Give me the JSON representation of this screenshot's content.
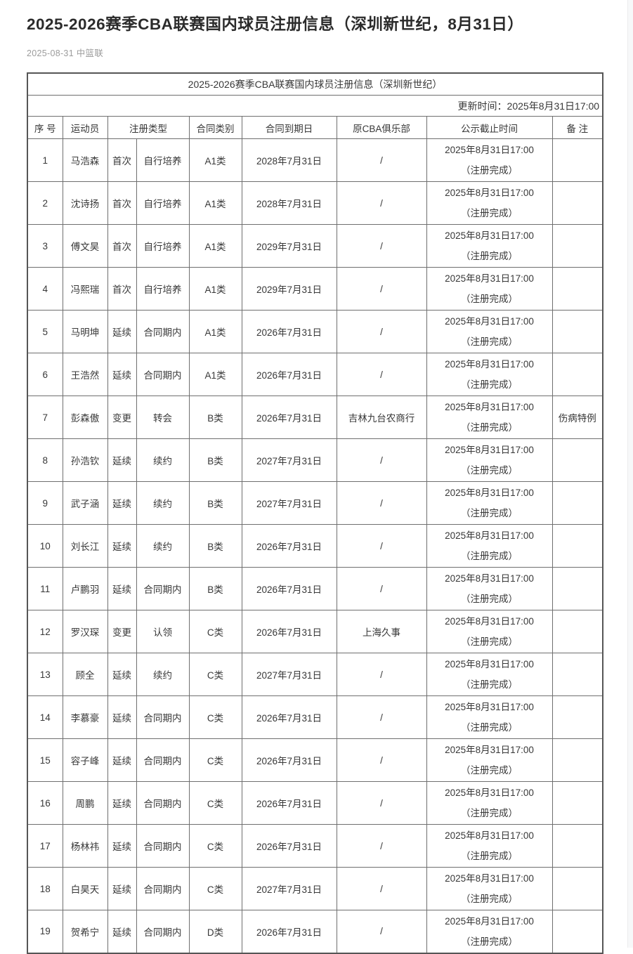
{
  "page": {
    "title": "2025-2026赛季CBA联赛国内球员注册信息（深圳新世纪，8月31日）",
    "meta": "2025-08-31 中篮联"
  },
  "table": {
    "caption": "2025-2026赛季CBA联赛国内球员注册信息（深圳新世纪）",
    "update_time": "更新时间：2025年8月31日17:00",
    "columns": {
      "no": "序 号",
      "player": "运动员",
      "reg_type": "注册类型",
      "contract_class": "合同类别",
      "contract_expiry": "合同到期日",
      "former_club": "原CBA俱乐部",
      "notice_deadline": "公示截止时间",
      "remark": "备 注"
    },
    "rows": [
      {
        "no": "1",
        "player": "马浩森",
        "reg1": "首次",
        "reg2": "自行培养",
        "cls": "A1类",
        "expiry": "2028年7月31日",
        "club": "/",
        "notice1": "2025年8月31日17:00",
        "notice2": "（注册完成）",
        "remark": ""
      },
      {
        "no": "2",
        "player": "沈诗扬",
        "reg1": "首次",
        "reg2": "自行培养",
        "cls": "A1类",
        "expiry": "2028年7月31日",
        "club": "/",
        "notice1": "2025年8月31日17:00",
        "notice2": "（注册完成）",
        "remark": ""
      },
      {
        "no": "3",
        "player": "傅文昊",
        "reg1": "首次",
        "reg2": "自行培养",
        "cls": "A1类",
        "expiry": "2029年7月31日",
        "club": "/",
        "notice1": "2025年8月31日17:00",
        "notice2": "（注册完成）",
        "remark": ""
      },
      {
        "no": "4",
        "player": "冯熙瑞",
        "reg1": "首次",
        "reg2": "自行培养",
        "cls": "A1类",
        "expiry": "2029年7月31日",
        "club": "/",
        "notice1": "2025年8月31日17:00",
        "notice2": "（注册完成）",
        "remark": ""
      },
      {
        "no": "5",
        "player": "马明坤",
        "reg1": "延续",
        "reg2": "合同期内",
        "cls": "A1类",
        "expiry": "2026年7月31日",
        "club": "/",
        "notice1": "2025年8月31日17:00",
        "notice2": "（注册完成）",
        "remark": ""
      },
      {
        "no": "6",
        "player": "王浩然",
        "reg1": "延续",
        "reg2": "合同期内",
        "cls": "A1类",
        "expiry": "2026年7月31日",
        "club": "/",
        "notice1": "2025年8月31日17:00",
        "notice2": "（注册完成）",
        "remark": ""
      },
      {
        "no": "7",
        "player": "彭森傲",
        "reg1": "变更",
        "reg2": "转会",
        "cls": "B类",
        "expiry": "2026年7月31日",
        "club": "吉林九台农商行",
        "notice1": "2025年8月31日17:00",
        "notice2": "（注册完成）",
        "remark": "伤病特例"
      },
      {
        "no": "8",
        "player": "孙浩钦",
        "reg1": "延续",
        "reg2": "续约",
        "cls": "B类",
        "expiry": "2027年7月31日",
        "club": "/",
        "notice1": "2025年8月31日17:00",
        "notice2": "（注册完成）",
        "remark": ""
      },
      {
        "no": "9",
        "player": "武子涵",
        "reg1": "延续",
        "reg2": "续约",
        "cls": "B类",
        "expiry": "2027年7月31日",
        "club": "/",
        "notice1": "2025年8月31日17:00",
        "notice2": "（注册完成）",
        "remark": ""
      },
      {
        "no": "10",
        "player": "刘长江",
        "reg1": "延续",
        "reg2": "续约",
        "cls": "B类",
        "expiry": "2026年7月31日",
        "club": "/",
        "notice1": "2025年8月31日17:00",
        "notice2": "（注册完成）",
        "remark": ""
      },
      {
        "no": "11",
        "player": "卢鹏羽",
        "reg1": "延续",
        "reg2": "合同期内",
        "cls": "B类",
        "expiry": "2026年7月31日",
        "club": "/",
        "notice1": "2025年8月31日17:00",
        "notice2": "（注册完成）",
        "remark": ""
      },
      {
        "no": "12",
        "player": "罗汉琛",
        "reg1": "变更",
        "reg2": "认领",
        "cls": "C类",
        "expiry": "2026年7月31日",
        "club": "上海久事",
        "notice1": "2025年8月31日17:00",
        "notice2": "（注册完成）",
        "remark": ""
      },
      {
        "no": "13",
        "player": "顾全",
        "reg1": "延续",
        "reg2": "续约",
        "cls": "C类",
        "expiry": "2027年7月31日",
        "club": "/",
        "notice1": "2025年8月31日17:00",
        "notice2": "（注册完成）",
        "remark": ""
      },
      {
        "no": "14",
        "player": "李慕豪",
        "reg1": "延续",
        "reg2": "合同期内",
        "cls": "C类",
        "expiry": "2026年7月31日",
        "club": "/",
        "notice1": "2025年8月31日17:00",
        "notice2": "（注册完成）",
        "remark": ""
      },
      {
        "no": "15",
        "player": "容子峰",
        "reg1": "延续",
        "reg2": "合同期内",
        "cls": "C类",
        "expiry": "2026年7月31日",
        "club": "/",
        "notice1": "2025年8月31日17:00",
        "notice2": "（注册完成）",
        "remark": ""
      },
      {
        "no": "16",
        "player": "周鹏",
        "reg1": "延续",
        "reg2": "合同期内",
        "cls": "C类",
        "expiry": "2026年7月31日",
        "club": "/",
        "notice1": "2025年8月31日17:00",
        "notice2": "（注册完成）",
        "remark": ""
      },
      {
        "no": "17",
        "player": "杨林祎",
        "reg1": "延续",
        "reg2": "合同期内",
        "cls": "C类",
        "expiry": "2026年7月31日",
        "club": "/",
        "notice1": "2025年8月31日17:00",
        "notice2": "（注册完成）",
        "remark": ""
      },
      {
        "no": "18",
        "player": "白昊天",
        "reg1": "延续",
        "reg2": "合同期内",
        "cls": "C类",
        "expiry": "2027年7月31日",
        "club": "/",
        "notice1": "2025年8月31日17:00",
        "notice2": "（注册完成）",
        "remark": ""
      },
      {
        "no": "19",
        "player": "贺希宁",
        "reg1": "延续",
        "reg2": "合同期内",
        "cls": "D类",
        "expiry": "2026年7月31日",
        "club": "/",
        "notice1": "2025年8月31日17:00",
        "notice2": "（注册完成）",
        "remark": ""
      }
    ]
  }
}
